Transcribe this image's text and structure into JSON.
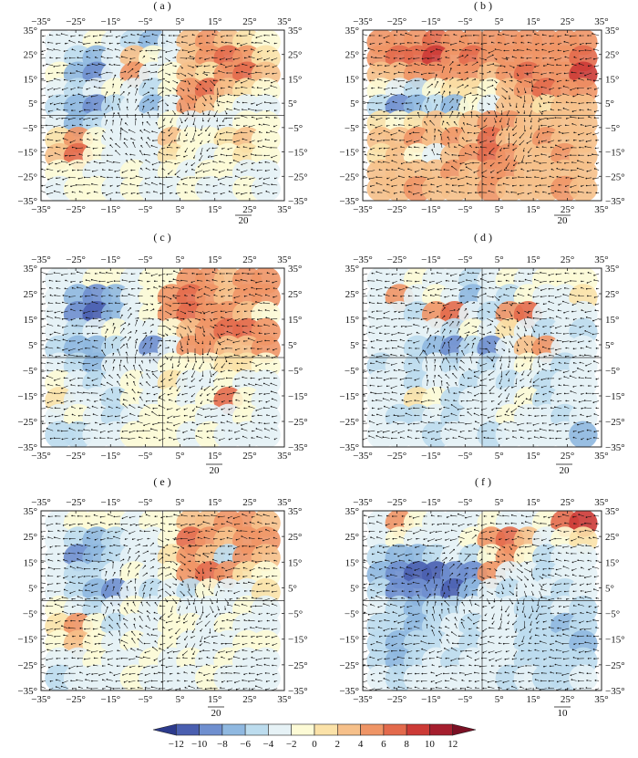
{
  "panels": [
    {
      "id": "a",
      "label": "( a )",
      "vector_scale": "20",
      "seed": 11
    },
    {
      "id": "b",
      "label": "( b )",
      "vector_scale": "20",
      "seed": 23
    },
    {
      "id": "c",
      "label": "( c )",
      "vector_scale": "20",
      "seed": 37
    },
    {
      "id": "d",
      "label": "( d )",
      "vector_scale": "20",
      "seed": 41
    },
    {
      "id": "e",
      "label": "( e )",
      "vector_scale": "20",
      "seed": 53
    },
    {
      "id": "f",
      "label": "( f )",
      "vector_scale": "10",
      "seed": 67
    }
  ],
  "axes": {
    "x_ticks": [
      "−35°",
      "−25°",
      "−15°",
      "−5°",
      "5°",
      "15°",
      "25°",
      "35°"
    ],
    "y_ticks": [
      "35°",
      "25°",
      "15°",
      "5°",
      "−5°",
      "−15°",
      "−25°",
      "−35°"
    ],
    "range": [
      -35,
      35
    ]
  },
  "colorbar": {
    "labels": [
      "−12",
      "−10",
      "−8",
      "−6",
      "−4",
      "−2",
      "0",
      "2",
      "4",
      "6",
      "8",
      "10",
      "12"
    ],
    "colors": [
      "#2c3a8c",
      "#4a5fb0",
      "#6f8fcf",
      "#8fb8e0",
      "#bcdcee",
      "#e6f2f6",
      "#fdfbd6",
      "#fbe2a8",
      "#f6c08a",
      "#ef9566",
      "#e36a4c",
      "#cc3a36",
      "#a51e2e",
      "#7a1024"
    ]
  },
  "panel_fields": {
    "a": [
      [
        5,
        5,
        6,
        5,
        4,
        3,
        5,
        8,
        9,
        8,
        7,
        6
      ],
      [
        5,
        4,
        3,
        5,
        8,
        6,
        5,
        8,
        9,
        10,
        9,
        7
      ],
      [
        6,
        3,
        2,
        5,
        9,
        5,
        6,
        8,
        7,
        9,
        10,
        8
      ],
      [
        5,
        4,
        5,
        6,
        5,
        4,
        6,
        9,
        10,
        8,
        7,
        6
      ],
      [
        4,
        3,
        2,
        4,
        5,
        3,
        5,
        9,
        8,
        6,
        5,
        5
      ],
      [
        5,
        3,
        4,
        5,
        5,
        5,
        6,
        5,
        5,
        5,
        6,
        6
      ],
      [
        7,
        9,
        6,
        5,
        5,
        5,
        8,
        6,
        6,
        7,
        8,
        6
      ],
      [
        8,
        10,
        6,
        5,
        5,
        5,
        7,
        6,
        5,
        6,
        7,
        6
      ],
      [
        6,
        6,
        5,
        5,
        6,
        5,
        6,
        5,
        6,
        6,
        5,
        5
      ],
      [
        5,
        6,
        6,
        5,
        6,
        5,
        5,
        6,
        5,
        5,
        6,
        5
      ]
    ],
    "b": [
      [
        9,
        9,
        9,
        10,
        9,
        9,
        9,
        9,
        9,
        9,
        9,
        9
      ],
      [
        9,
        10,
        10,
        11,
        9,
        10,
        9,
        9,
        9,
        9,
        9,
        10
      ],
      [
        8,
        8,
        9,
        9,
        9,
        9,
        8,
        9,
        10,
        9,
        9,
        11
      ],
      [
        6,
        5,
        4,
        6,
        7,
        7,
        6,
        8,
        9,
        10,
        9,
        9
      ],
      [
        4,
        2,
        3,
        4,
        3,
        6,
        5,
        8,
        8,
        7,
        8,
        8
      ],
      [
        7,
        6,
        7,
        8,
        7,
        8,
        9,
        9,
        8,
        8,
        8,
        8
      ],
      [
        8,
        8,
        9,
        8,
        9,
        8,
        10,
        8,
        8,
        9,
        8,
        8
      ],
      [
        7,
        8,
        6,
        5,
        8,
        9,
        10,
        9,
        8,
        8,
        9,
        8
      ],
      [
        8,
        8,
        8,
        8,
        9,
        8,
        9,
        9,
        8,
        8,
        8,
        8
      ],
      [
        8,
        8,
        9,
        8,
        8,
        8,
        9,
        8,
        8,
        8,
        9,
        8
      ]
    ],
    "c": [
      [
        5,
        5,
        6,
        6,
        5,
        6,
        6,
        9,
        9,
        8,
        9,
        9
      ],
      [
        5,
        3,
        2,
        3,
        5,
        6,
        9,
        10,
        9,
        8,
        9,
        9
      ],
      [
        5,
        2,
        1,
        3,
        5,
        6,
        9,
        10,
        9,
        9,
        8,
        6
      ],
      [
        5,
        4,
        5,
        6,
        5,
        5,
        6,
        8,
        9,
        10,
        10,
        9
      ],
      [
        4,
        3,
        3,
        4,
        5,
        2,
        5,
        9,
        9,
        8,
        8,
        9
      ],
      [
        5,
        4,
        3,
        5,
        5,
        5,
        6,
        6,
        6,
        7,
        7,
        6
      ],
      [
        6,
        5,
        4,
        5,
        6,
        5,
        7,
        5,
        5,
        6,
        5,
        5
      ],
      [
        7,
        5,
        5,
        4,
        6,
        5,
        6,
        5,
        6,
        10,
        6,
        5
      ],
      [
        5,
        6,
        5,
        4,
        5,
        6,
        6,
        6,
        5,
        5,
        6,
        5
      ],
      [
        4,
        4,
        5,
        5,
        6,
        6,
        6,
        5,
        6,
        5,
        5,
        5
      ]
    ],
    "d": [
      [
        5,
        5,
        6,
        5,
        5,
        4,
        5,
        6,
        5,
        6,
        6,
        6
      ],
      [
        5,
        9,
        5,
        6,
        5,
        3,
        5,
        4,
        6,
        5,
        5,
        7
      ],
      [
        5,
        5,
        4,
        9,
        10,
        5,
        4,
        9,
        10,
        5,
        5,
        5
      ],
      [
        5,
        5,
        5,
        5,
        4,
        6,
        5,
        7,
        5,
        4,
        5,
        4
      ],
      [
        5,
        5,
        4,
        3,
        2,
        4,
        2,
        5,
        8,
        9,
        5,
        5
      ],
      [
        4,
        5,
        4,
        5,
        4,
        5,
        4,
        5,
        6,
        5,
        4,
        5
      ],
      [
        5,
        5,
        4,
        5,
        5,
        4,
        5,
        4,
        5,
        4,
        5,
        5
      ],
      [
        5,
        5,
        7,
        6,
        4,
        5,
        5,
        5,
        6,
        4,
        5,
        5
      ],
      [
        5,
        4,
        4,
        5,
        4,
        5,
        5,
        6,
        5,
        5,
        4,
        5
      ],
      [
        5,
        5,
        5,
        4,
        5,
        5,
        4,
        5,
        5,
        5,
        5,
        3
      ]
    ],
    "e": [
      [
        5,
        6,
        6,
        6,
        5,
        6,
        6,
        8,
        8,
        9,
        9,
        8
      ],
      [
        5,
        4,
        3,
        4,
        5,
        5,
        6,
        10,
        9,
        8,
        9,
        9
      ],
      [
        5,
        2,
        3,
        4,
        5,
        5,
        7,
        9,
        8,
        4,
        9,
        8
      ],
      [
        5,
        4,
        4,
        5,
        6,
        5,
        6,
        9,
        10,
        9,
        7,
        6
      ],
      [
        5,
        4,
        3,
        2,
        5,
        4,
        5,
        4,
        6,
        5,
        5,
        7
      ],
      [
        6,
        5,
        4,
        5,
        6,
        5,
        6,
        5,
        5,
        5,
        6,
        5
      ],
      [
        7,
        9,
        6,
        4,
        5,
        5,
        6,
        6,
        5,
        6,
        5,
        5
      ],
      [
        6,
        8,
        6,
        5,
        6,
        5,
        6,
        5,
        5,
        5,
        6,
        6
      ],
      [
        5,
        5,
        6,
        5,
        5,
        6,
        5,
        6,
        5,
        6,
        5,
        5
      ],
      [
        4,
        5,
        5,
        5,
        6,
        5,
        5,
        5,
        6,
        5,
        5,
        5
      ]
    ],
    "f": [
      [
        5,
        9,
        6,
        5,
        5,
        5,
        6,
        5,
        5,
        6,
        10,
        11
      ],
      [
        5,
        6,
        5,
        5,
        5,
        6,
        9,
        10,
        8,
        5,
        6,
        7
      ],
      [
        4,
        3,
        3,
        4,
        5,
        4,
        6,
        9,
        6,
        4,
        5,
        5
      ],
      [
        3,
        2,
        1,
        1,
        2,
        2,
        9,
        5,
        5,
        4,
        5,
        5
      ],
      [
        4,
        2,
        2,
        2,
        1,
        3,
        5,
        4,
        5,
        5,
        4,
        5
      ],
      [
        5,
        4,
        3,
        4,
        4,
        5,
        5,
        5,
        4,
        4,
        5,
        4
      ],
      [
        4,
        4,
        3,
        4,
        5,
        4,
        5,
        5,
        4,
        4,
        3,
        4
      ],
      [
        4,
        3,
        4,
        4,
        5,
        4,
        5,
        5,
        4,
        4,
        4,
        3
      ],
      [
        4,
        3,
        4,
        5,
        4,
        5,
        5,
        5,
        4,
        4,
        4,
        4
      ],
      [
        5,
        4,
        5,
        5,
        5,
        5,
        5,
        4,
        5,
        4,
        4,
        5
      ]
    ]
  }
}
